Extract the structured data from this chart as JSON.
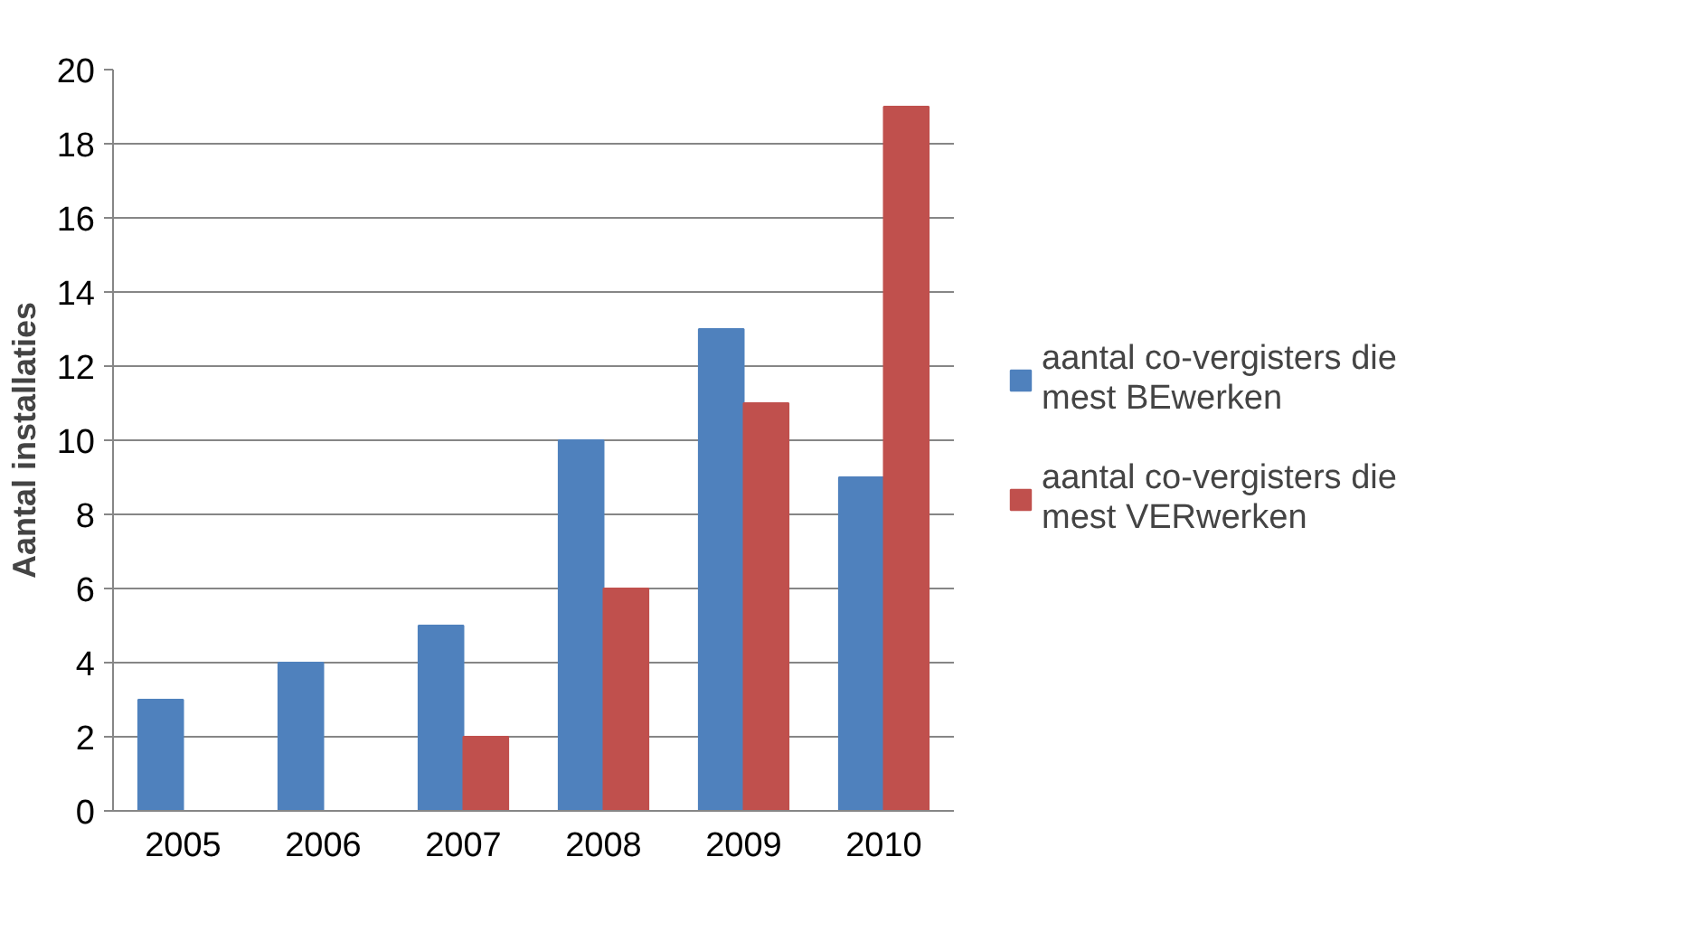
{
  "chart_data": {
    "type": "bar",
    "ylabel": "Aantal installaties",
    "categories": [
      "2005",
      "2006",
      "2007",
      "2008",
      "2009",
      "2010"
    ],
    "series": [
      {
        "name": "aantal co-vergisters die mest BEwerken",
        "color": "#4f81bd",
        "values": [
          3,
          4,
          5,
          10,
          13,
          9
        ]
      },
      {
        "name": "aantal co-vergisters die mest VERwerken",
        "color": "#c0504d",
        "values": [
          null,
          null,
          2,
          6,
          11,
          19
        ]
      }
    ],
    "ylim": [
      0,
      20
    ],
    "yticks": [
      0,
      2,
      4,
      6,
      8,
      10,
      12,
      14,
      16,
      18,
      20
    ],
    "grid": "y",
    "legend": "right"
  }
}
